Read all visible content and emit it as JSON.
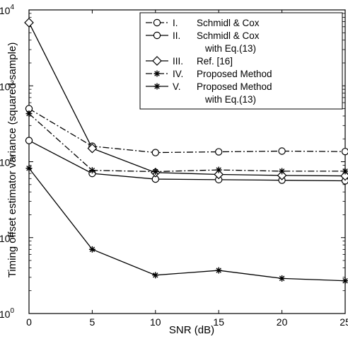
{
  "chart_data": {
    "type": "line",
    "xlabel": "SNR (dB)",
    "ylabel": "Timing offset estimator variance (squared sample)",
    "xlim": [
      0,
      25
    ],
    "ylim": [
      1,
      10000
    ],
    "yscale": "log",
    "grid": false,
    "legend_position": "top-right",
    "x_ticks": [
      "0",
      "5",
      "10",
      "15",
      "20",
      "25"
    ],
    "y_ticks": [
      {
        "base": "10",
        "exp": "0"
      },
      {
        "base": "10",
        "exp": "1"
      },
      {
        "base": "10",
        "exp": "2"
      },
      {
        "base": "10",
        "exp": "3"
      },
      {
        "base": "10",
        "exp": "4"
      }
    ],
    "x": [
      0,
      5,
      10,
      15,
      20,
      25
    ],
    "series": [
      {
        "legend_lines": [
          "I.",
          "Schmidl & Cox"
        ],
        "line": "dashdot",
        "marker": "circle",
        "values": [
          500,
          160,
          132,
          135,
          138,
          136
        ]
      },
      {
        "legend_lines": [
          "II.",
          "Schmidl & Cox",
          "with Eq.(13)"
        ],
        "line": "solid",
        "marker": "circle",
        "values": [
          190,
          70,
          59,
          58,
          57,
          56
        ]
      },
      {
        "legend_lines": [
          "III.",
          "Ref. [16]"
        ],
        "line": "solid",
        "marker": "diamond",
        "values": [
          6800,
          150,
          72,
          68,
          66,
          65
        ]
      },
      {
        "legend_lines": [
          "IV.",
          "Proposed Method"
        ],
        "line": "dashdot",
        "marker": "star",
        "values": [
          430,
          77,
          74,
          78,
          75,
          75
        ]
      },
      {
        "legend_lines": [
          "V.",
          "Proposed Method",
          "with Eq.(13)"
        ],
        "line": "solid",
        "marker": "star",
        "values": [
          82,
          7,
          3.2,
          3.7,
          2.9,
          2.7
        ]
      }
    ]
  }
}
